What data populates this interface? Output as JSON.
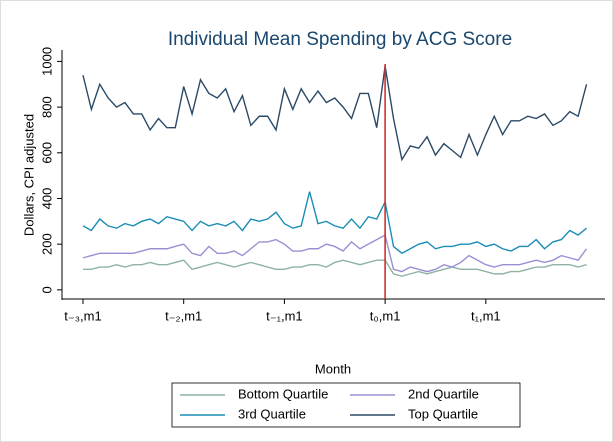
{
  "chart_data": {
    "type": "line",
    "title": "Individual Mean Spending by ACG Score",
    "x_label": "Month",
    "y_label": "Dollars, CPI adjusted",
    "x": [
      -36,
      -35,
      -34,
      -33,
      -32,
      -31,
      -30,
      -29,
      -28,
      -27,
      -26,
      -25,
      -24,
      -23,
      -22,
      -21,
      -20,
      -19,
      -18,
      -17,
      -16,
      -15,
      -14,
      -13,
      -12,
      -11,
      -10,
      -9,
      -8,
      -7,
      -6,
      -5,
      -4,
      -3,
      -2,
      -1,
      0,
      1,
      2,
      3,
      4,
      5,
      6,
      7,
      8,
      9,
      10,
      11,
      12,
      13,
      14,
      15,
      16,
      17,
      18,
      19,
      20,
      21,
      22,
      23,
      24
    ],
    "xlim": [
      -38.5,
      26.2
    ],
    "xticks": [
      {
        "value": -36,
        "label": "t₋₃,m1"
      },
      {
        "value": -24,
        "label": "t₋₂,m1"
      },
      {
        "value": -12,
        "label": "t₋₁,m1"
      },
      {
        "value": 0,
        "label": "t₀,m1"
      },
      {
        "value": 12,
        "label": "t₁,m1"
      }
    ],
    "ylim": [
      -40,
      1050
    ],
    "yticks": [
      0,
      200,
      400,
      600,
      800,
      1000
    ],
    "vline": 0,
    "vline_color": "#d03030",
    "legend": "bottom",
    "series": [
      {
        "name": "Bottom Quartile",
        "color": "#8fb3a3",
        "values": [
          90,
          90,
          100,
          100,
          110,
          100,
          110,
          110,
          120,
          110,
          110,
          120,
          130,
          90,
          100,
          110,
          120,
          110,
          100,
          110,
          120,
          110,
          100,
          90,
          90,
          100,
          100,
          110,
          110,
          100,
          120,
          130,
          120,
          110,
          120,
          130,
          130,
          70,
          60,
          70,
          80,
          70,
          80,
          90,
          100,
          90,
          90,
          90,
          80,
          70,
          70,
          80,
          80,
          90,
          100,
          100,
          110,
          110,
          110,
          100,
          110
        ]
      },
      {
        "name": "2nd Quartile",
        "color": "#9b8fd4",
        "values": [
          140,
          150,
          160,
          160,
          160,
          160,
          160,
          170,
          180,
          180,
          180,
          190,
          200,
          160,
          150,
          190,
          160,
          160,
          170,
          150,
          180,
          210,
          210,
          220,
          200,
          170,
          170,
          180,
          180,
          200,
          190,
          170,
          210,
          180,
          200,
          220,
          240,
          90,
          80,
          100,
          90,
          80,
          90,
          110,
          100,
          120,
          150,
          130,
          110,
          100,
          110,
          110,
          110,
          120,
          130,
          120,
          130,
          150,
          140,
          130,
          180
        ]
      },
      {
        "name": "3rd Quartile",
        "color": "#1a8db5",
        "values": [
          280,
          260,
          310,
          280,
          270,
          290,
          280,
          300,
          310,
          290,
          320,
          310,
          300,
          260,
          300,
          280,
          290,
          280,
          300,
          260,
          310,
          300,
          310,
          340,
          290,
          270,
          280,
          430,
          290,
          300,
          280,
          270,
          310,
          270,
          320,
          310,
          385,
          190,
          160,
          180,
          200,
          210,
          180,
          190,
          190,
          200,
          200,
          210,
          190,
          200,
          180,
          170,
          190,
          190,
          220,
          180,
          210,
          220,
          260,
          240,
          270
        ]
      },
      {
        "name": "Top Quartile",
        "color": "#2b4a68",
        "values": [
          940,
          790,
          900,
          840,
          800,
          820,
          770,
          770,
          700,
          750,
          710,
          710,
          890,
          770,
          920,
          860,
          840,
          880,
          780,
          850,
          720,
          760,
          760,
          700,
          880,
          790,
          880,
          820,
          870,
          820,
          840,
          800,
          750,
          860,
          860,
          710,
          980,
          750,
          570,
          630,
          620,
          670,
          590,
          640,
          610,
          580,
          680,
          590,
          680,
          760,
          680,
          740,
          740,
          760,
          750,
          770,
          720,
          740,
          780,
          760,
          900
        ]
      }
    ]
  }
}
